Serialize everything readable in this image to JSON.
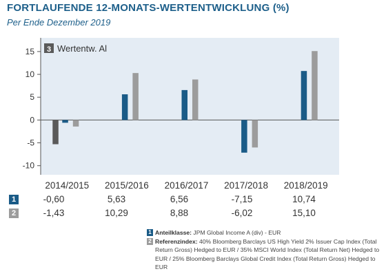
{
  "header": {
    "title": "FORTLAUFENDE 12-MONATS-WERTENTWICKLUNG (%)",
    "subtitle": "Per Ende Dezember 2019"
  },
  "chart_data": {
    "type": "bar",
    "categories": [
      "2014/2015",
      "2015/2016",
      "2016/2017",
      "2017/2018",
      "2018/2019"
    ],
    "series": [
      {
        "name": "1",
        "color": "#1a5b87",
        "values": [
          -0.6,
          5.63,
          6.56,
          -7.15,
          10.74
        ]
      },
      {
        "name": "2",
        "color": "#9c9c9c",
        "values": [
          -1.43,
          10.29,
          8.88,
          -6.02,
          15.1
        ]
      }
    ],
    "extra_bar": {
      "label": "3",
      "value": -5.3,
      "color": "#5a5a5a"
    },
    "ylim": [
      -12,
      18
    ],
    "yticks": [
      -10,
      -5,
      0,
      5,
      10,
      15
    ],
    "ytick_labels": [
      "-10",
      "-5",
      "0",
      "5",
      "10",
      "15"
    ],
    "inset_legend": {
      "badge": "3",
      "text": "Wertentw. Al"
    },
    "grid": false,
    "plot_background": "#e4ecf4"
  },
  "table": {
    "rows": [
      {
        "badge": "1",
        "badge_color": "#1a5b87",
        "cells": [
          "-0,60",
          "5,63",
          "6,56",
          "-7,15",
          "10,74"
        ]
      },
      {
        "badge": "2",
        "badge_color": "#9c9c9c",
        "cells": [
          "-1,43",
          "10,29",
          "8,88",
          "-6,02",
          "15,10"
        ]
      }
    ]
  },
  "notes": {
    "n1": {
      "badge": "1",
      "label": "Anteilklasse:",
      "text": " JPM Global Income A (div) - EUR"
    },
    "n2": {
      "badge": "2",
      "label": "Referenzindex:",
      "text": " 40% Bloomberg Barclays US High Yield 2% Issuer Cap Index (Total Return Gross) Hedged to EUR / 35% MSCI World Index (Total Return Net) Hedged to EUR / 25% Bloomberg Barclays Global Credit Index (Total Return Gross) Hedged to EUR"
    }
  }
}
